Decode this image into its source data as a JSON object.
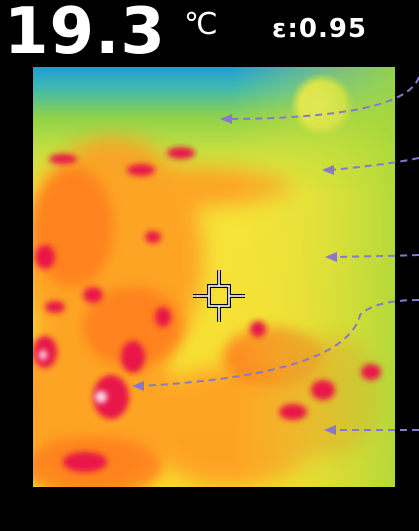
{
  "temperature": {
    "value": "19.3",
    "unit": "℃"
  },
  "emissivity": {
    "text": "ε:0.95"
  },
  "crosshair_icon": "crosshair-icon",
  "palette": {
    "hot": "#e8144a",
    "warm": "#ff7a1a",
    "mid": "#ffd21a",
    "cool": "#9ed62a",
    "cold": "#2aa6d6",
    "annotation": "#8877cc"
  }
}
